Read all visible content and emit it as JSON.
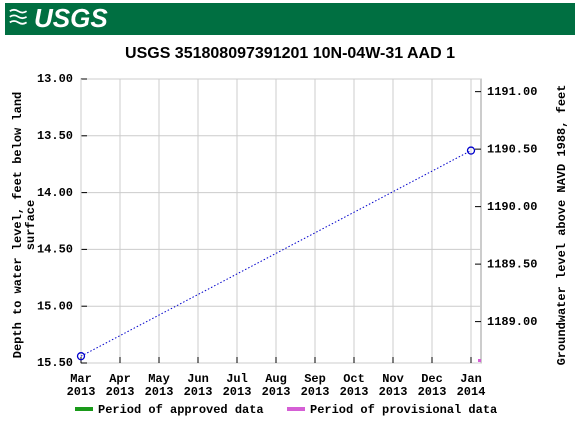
{
  "chart_data": {
    "type": "line",
    "logo": "USGS",
    "title": "USGS 351808097391201 10N-04W-31 AAD 1",
    "ylabel": [
      "Depth to water level, feet below land",
      "surface"
    ],
    "y2label": "Groundwater level above NAVD 1988, feet",
    "xlim": [
      "2013-03",
      "2014-01"
    ],
    "xticks": [
      {
        "value": "2013-03",
        "label": [
          "Mar",
          "2013"
        ]
      },
      {
        "value": "2013-04",
        "label": [
          "Apr",
          "2013"
        ]
      },
      {
        "value": "2013-05",
        "label": [
          "May",
          "2013"
        ]
      },
      {
        "value": "2013-06",
        "label": [
          "Jun",
          "2013"
        ]
      },
      {
        "value": "2013-07",
        "label": [
          "Jul",
          "2013"
        ]
      },
      {
        "value": "2013-08",
        "label": [
          "Aug",
          "2013"
        ]
      },
      {
        "value": "2013-09",
        "label": [
          "Sep",
          "2013"
        ]
      },
      {
        "value": "2013-10",
        "label": [
          "Oct",
          "2013"
        ]
      },
      {
        "value": "2013-11",
        "label": [
          "Nov",
          "2013"
        ]
      },
      {
        "value": "2013-12",
        "label": [
          "Dec",
          "2013"
        ]
      },
      {
        "value": "2014-01",
        "label": [
          "Jan",
          "2014"
        ]
      }
    ],
    "ylim": [
      15.5,
      13.0
    ],
    "yticks": [
      {
        "value": 13.0,
        "label": "13.00"
      },
      {
        "value": 13.5,
        "label": "13.50"
      },
      {
        "value": 14.0,
        "label": "14.00"
      },
      {
        "value": 14.5,
        "label": "14.50"
      },
      {
        "value": 15.0,
        "label": "15.00"
      },
      {
        "value": 15.5,
        "label": "15.50"
      }
    ],
    "y2lim": [
      1188.64,
      1191.11
    ],
    "y2ticks": [
      {
        "value": 1189.0,
        "label": "1189.00"
      },
      {
        "value": 1189.5,
        "label": "1189.50"
      },
      {
        "value": 1190.0,
        "label": "1190.00"
      },
      {
        "value": 1190.5,
        "label": "1190.50"
      },
      {
        "value": 1191.0,
        "label": "1191.00"
      }
    ],
    "grid": true,
    "x": [
      "2013-03",
      "2014-01"
    ],
    "series": [
      {
        "color": "#0000cc",
        "values": [
          15.44,
          13.63
        ]
      }
    ],
    "legend": [
      {
        "name": "Period of approved data",
        "color": "#1a9a1a"
      },
      {
        "name": "Period of provisional data",
        "color": "#d55fd5"
      }
    ]
  }
}
